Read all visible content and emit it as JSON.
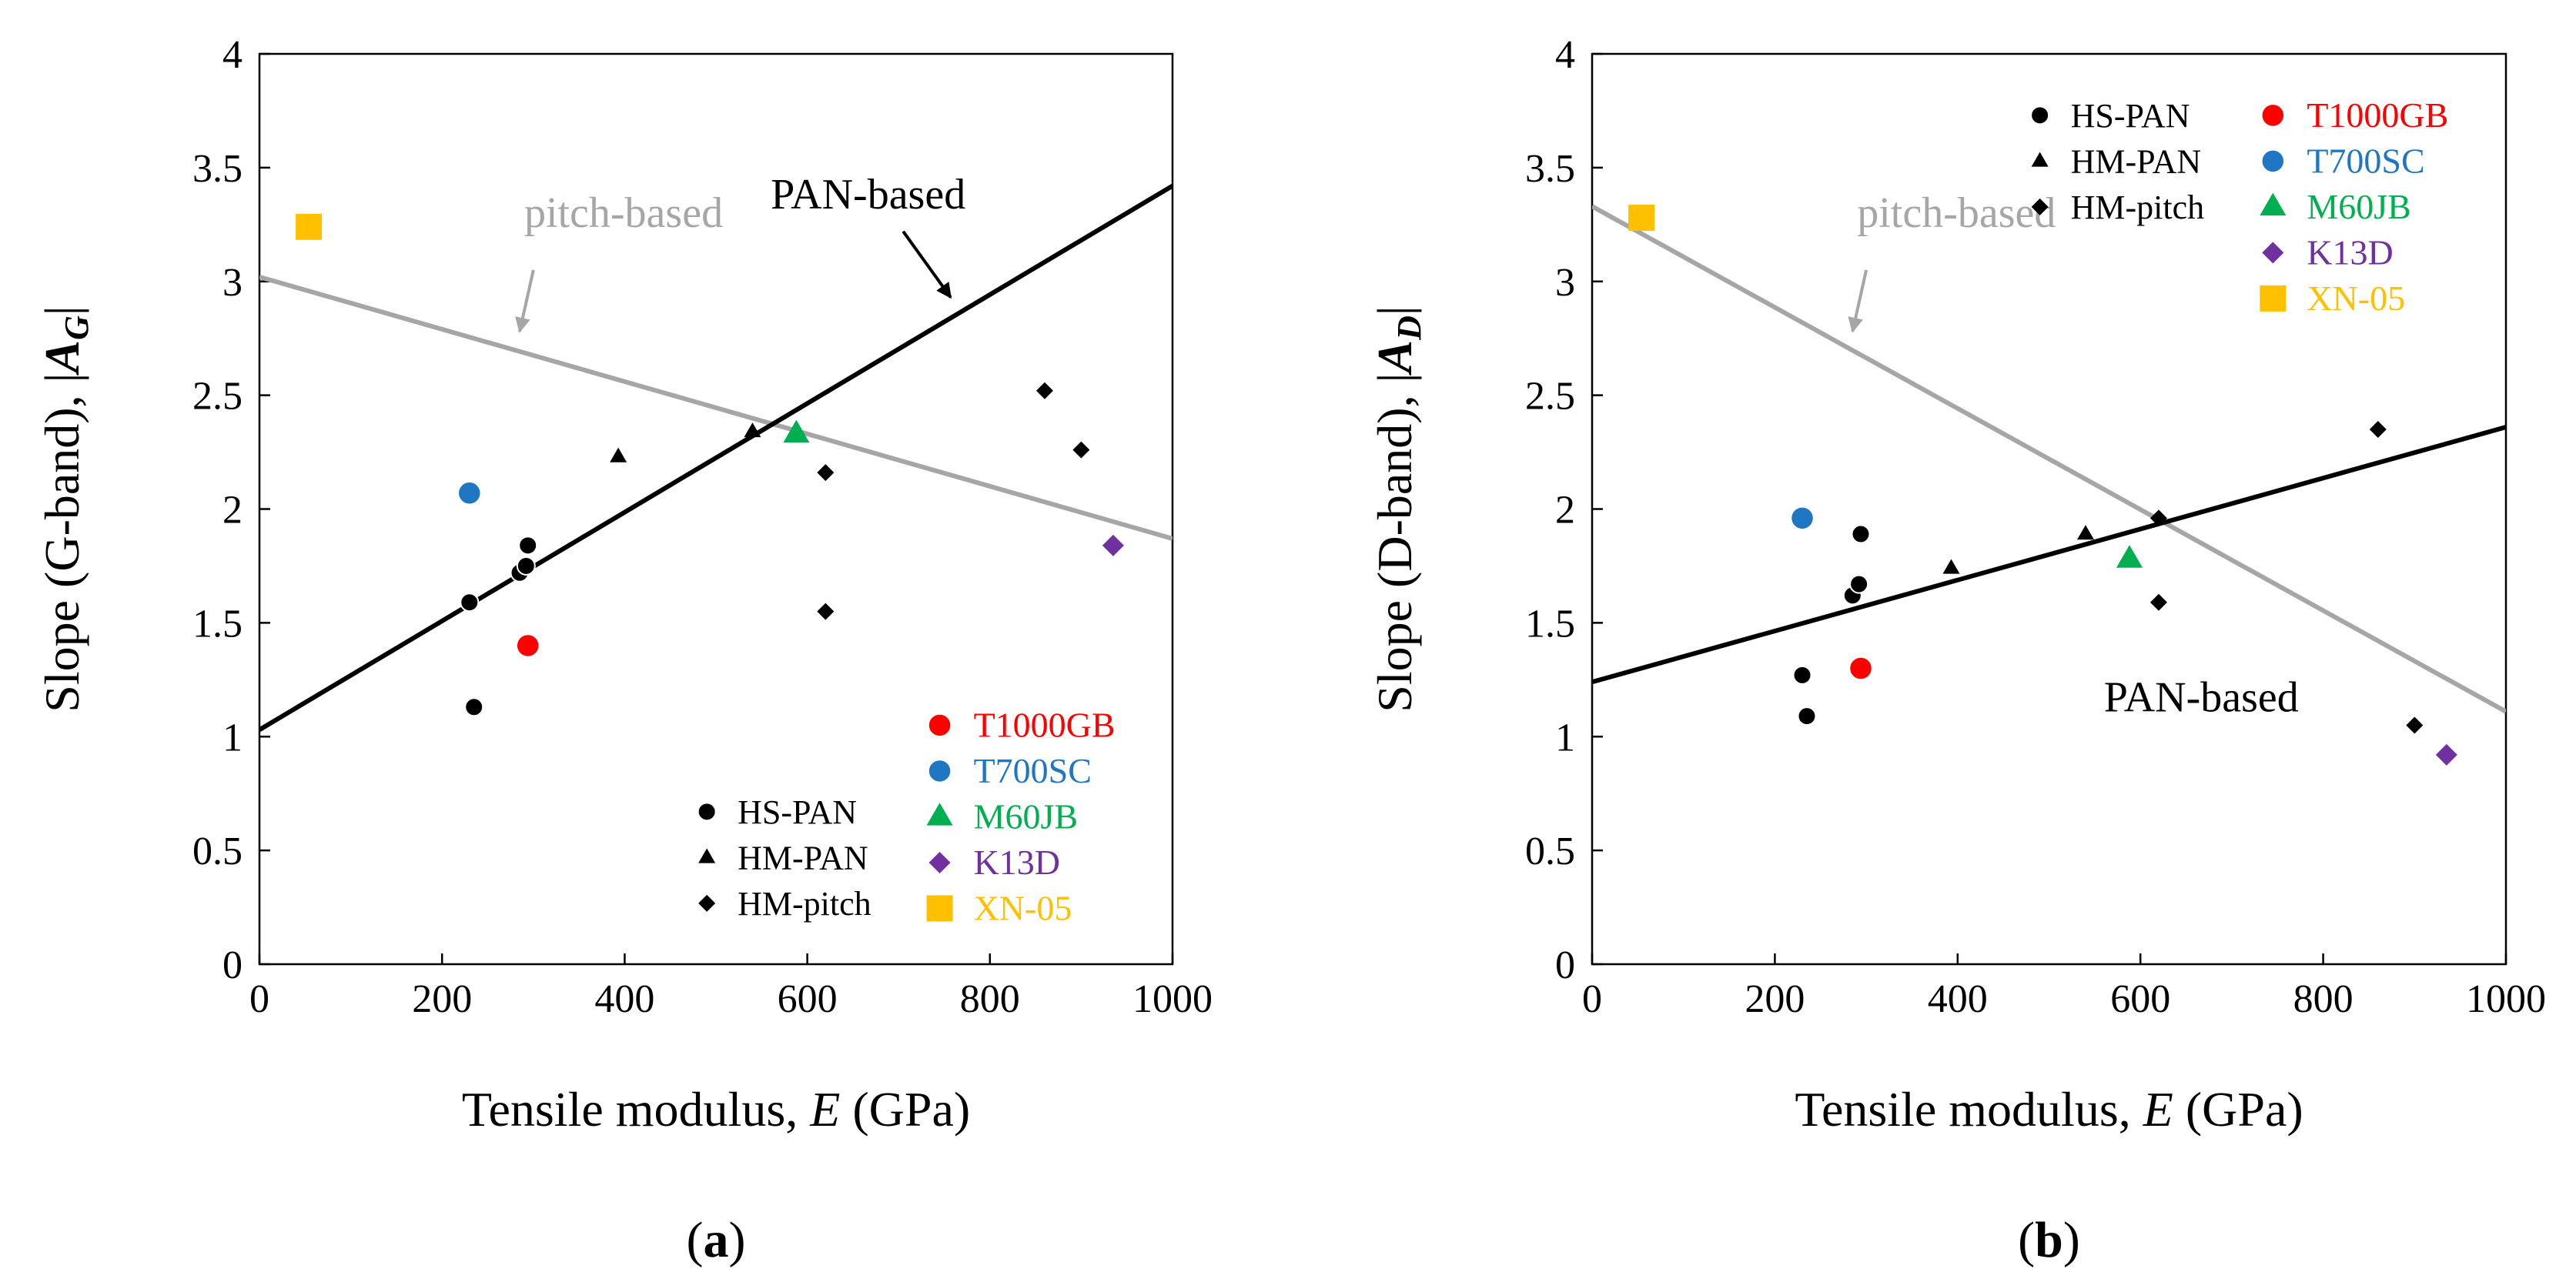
{
  "chart_data": [
    {
      "type": "scatter",
      "panel_label": "a",
      "xlabel": "Tensile modulus, E (GPa)",
      "xlabel_parts": {
        "pre": "Tensile modulus, ",
        "var": "E",
        "post": " (GPa)"
      },
      "ylabel": "Slope (G-band), |A_G|",
      "ylabel_parts": {
        "pre": "Slope (G-band), |",
        "var": "A",
        "sub": "G",
        "post": "|"
      },
      "xlim": [
        0,
        1000
      ],
      "ylim": [
        0,
        4
      ],
      "xticks": [
        0,
        200,
        400,
        600,
        800,
        1000
      ],
      "yticks": [
        0,
        0.5,
        1,
        1.5,
        2,
        2.5,
        3,
        3.5,
        4
      ],
      "ytick_labels": [
        "0",
        "0.5",
        "1",
        "1.5",
        "2",
        "2.5",
        "3",
        "3.5",
        "4"
      ],
      "series": [
        {
          "name": "HS-PAN",
          "marker": "circle",
          "color": "#000000",
          "size": "small",
          "points": [
            [
              230,
              1.59
            ],
            [
              235,
              1.13
            ],
            [
              285,
              1.72
            ],
            [
              292,
              1.75
            ],
            [
              294,
              1.84
            ]
          ]
        },
        {
          "name": "HM-PAN",
          "marker": "triangle",
          "color": "#000000",
          "size": "small",
          "points": [
            [
              393,
              2.23
            ],
            [
              540,
              2.34
            ]
          ]
        },
        {
          "name": "HM-pitch",
          "marker": "diamond",
          "color": "#000000",
          "size": "small",
          "points": [
            [
              620,
              2.16
            ],
            [
              620,
              1.55
            ],
            [
              860,
              2.52
            ],
            [
              900,
              2.26
            ]
          ]
        },
        {
          "name": "T1000GB",
          "marker": "circle",
          "color": "#ff0000",
          "size": "large",
          "points": [
            [
              294,
              1.4
            ]
          ]
        },
        {
          "name": "T700SC",
          "marker": "circle",
          "color": "#1f77c4",
          "size": "large",
          "points": [
            [
              230,
              2.07
            ]
          ]
        },
        {
          "name": "M60JB",
          "marker": "triangle",
          "color": "#00b050",
          "size": "large",
          "points": [
            [
              588,
              2.33
            ]
          ]
        },
        {
          "name": "K13D",
          "marker": "diamond",
          "color": "#7030a0",
          "size": "large",
          "points": [
            [
              935,
              1.84
            ]
          ]
        },
        {
          "name": "XN-05",
          "marker": "square",
          "color": "#ffc000",
          "size": "large",
          "points": [
            [
              54,
              3.24
            ]
          ]
        }
      ],
      "fit_lines": [
        {
          "name": "PAN-based",
          "color": "#000000",
          "x": [
            0,
            1000
          ],
          "y": [
            1.03,
            3.42
          ]
        },
        {
          "name": "pitch-based",
          "color": "#a6a6a6",
          "x": [
            0,
            1000
          ],
          "y": [
            3.02,
            1.87
          ]
        }
      ],
      "annotations": [
        {
          "text": "PAN-based",
          "color": "#000000",
          "x": 560,
          "y": 3.32,
          "arrow": {
            "from": [
              705,
              3.22
            ],
            "to": [
              757,
              2.93
            ]
          }
        },
        {
          "text": "pitch-based",
          "color": "#a6a6a6",
          "x": 290,
          "y": 3.24,
          "arrow": {
            "from": [
              300,
              3.05
            ],
            "to": [
              285,
              2.78
            ]
          }
        }
      ],
      "legend": [
        {
          "group": "generic",
          "position": "bottom-center",
          "items": [
            "HS-PAN",
            "HM-PAN",
            "HM-pitch"
          ]
        },
        {
          "group": "specific",
          "position": "bottom-right",
          "items": [
            "T1000GB",
            "T700SC",
            "M60JB",
            "K13D",
            "XN-05"
          ]
        }
      ]
    },
    {
      "type": "scatter",
      "panel_label": "b",
      "xlabel": "Tensile modulus, E (GPa)",
      "xlabel_parts": {
        "pre": "Tensile modulus, ",
        "var": "E",
        "post": " (GPa)"
      },
      "ylabel": "Slope (D-band), |A_D|",
      "ylabel_parts": {
        "pre": "Slope (D-band), |",
        "var": "A",
        "sub": "D",
        "post": "|"
      },
      "xlim": [
        0,
        1000
      ],
      "ylim": [
        0,
        4
      ],
      "xticks": [
        0,
        200,
        400,
        600,
        800,
        1000
      ],
      "yticks": [
        0,
        0.5,
        1,
        1.5,
        2,
        2.5,
        3,
        3.5,
        4
      ],
      "ytick_labels": [
        "0",
        "0.5",
        "1",
        "1.5",
        "2",
        "2.5",
        "3",
        "3.5",
        "4"
      ],
      "series": [
        {
          "name": "HS-PAN",
          "marker": "circle",
          "color": "#000000",
          "size": "small",
          "points": [
            [
              230,
              1.27
            ],
            [
              235,
              1.09
            ],
            [
              285,
              1.62
            ],
            [
              292,
              1.67
            ],
            [
              294,
              1.89
            ]
          ]
        },
        {
          "name": "HM-PAN",
          "marker": "triangle",
          "color": "#000000",
          "size": "small",
          "points": [
            [
              393,
              1.74
            ],
            [
              540,
              1.89
            ]
          ]
        },
        {
          "name": "HM-pitch",
          "marker": "diamond",
          "color": "#000000",
          "size": "small",
          "points": [
            [
              620,
              1.96
            ],
            [
              620,
              1.59
            ],
            [
              860,
              2.35
            ],
            [
              900,
              1.05
            ]
          ]
        },
        {
          "name": "T1000GB",
          "marker": "circle",
          "color": "#ff0000",
          "size": "large",
          "points": [
            [
              294,
              1.3
            ]
          ]
        },
        {
          "name": "T700SC",
          "marker": "circle",
          "color": "#1f77c4",
          "size": "large",
          "points": [
            [
              230,
              1.96
            ]
          ]
        },
        {
          "name": "M60JB",
          "marker": "triangle",
          "color": "#00b050",
          "size": "large",
          "points": [
            [
              588,
              1.78
            ]
          ]
        },
        {
          "name": "K13D",
          "marker": "diamond",
          "color": "#7030a0",
          "size": "large",
          "points": [
            [
              935,
              0.92
            ]
          ]
        },
        {
          "name": "XN-05",
          "marker": "square",
          "color": "#ffc000",
          "size": "large",
          "points": [
            [
              54,
              3.28
            ]
          ]
        }
      ],
      "fit_lines": [
        {
          "name": "PAN-based",
          "color": "#000000",
          "x": [
            0,
            1000
          ],
          "y": [
            1.24,
            2.36
          ]
        },
        {
          "name": "pitch-based",
          "color": "#a6a6a6",
          "x": [
            0,
            1000
          ],
          "y": [
            3.33,
            1.11
          ]
        }
      ],
      "annotations": [
        {
          "text": "PAN-based",
          "color": "#000000",
          "x": 560,
          "y": 1.11,
          "arrow": null
        },
        {
          "text": "pitch-based",
          "color": "#a6a6a6",
          "x": 290,
          "y": 3.24,
          "arrow": {
            "from": [
              300,
              3.05
            ],
            "to": [
              285,
              2.78
            ]
          }
        }
      ],
      "legend": [
        {
          "group": "generic",
          "position": "top-center",
          "items": [
            "HS-PAN",
            "HM-PAN",
            "HM-pitch"
          ]
        },
        {
          "group": "specific",
          "position": "top-right",
          "items": [
            "T1000GB",
            "T700SC",
            "M60JB",
            "K13D",
            "XN-05"
          ]
        }
      ]
    }
  ]
}
